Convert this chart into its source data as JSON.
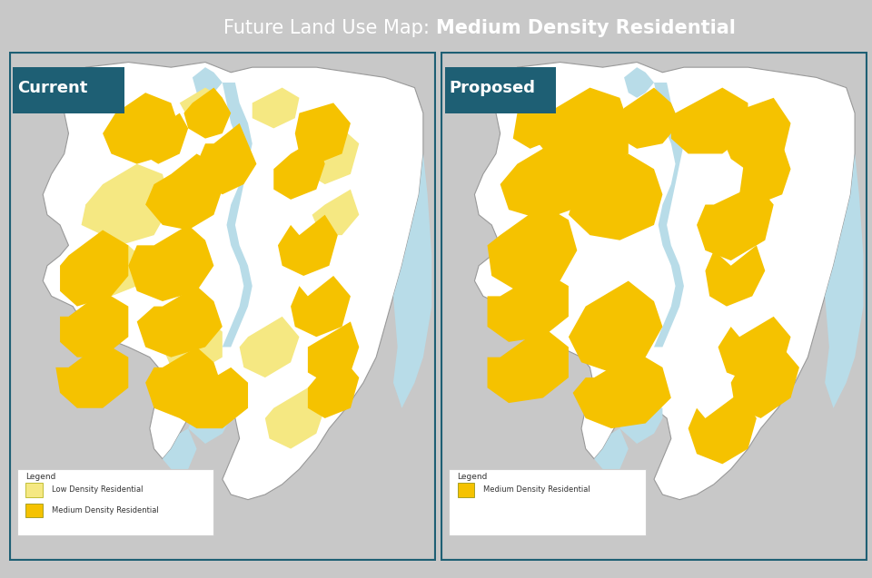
{
  "title_regular": "Future Land Use Map: ",
  "title_bold": "Medium Density Residential",
  "title_bg": "#1e5f74",
  "title_text_color": "#ffffff",
  "panel_bg": "#c8c8c8",
  "map_bg": "#ffffff",
  "water_color": "#b8dce8",
  "border_color": "#1e5f74",
  "border_width": 3,
  "left_label": "Current",
  "right_label": "Proposed",
  "label_bg": "#1e5f74",
  "label_text_color": "#ffffff",
  "low_density_color": "#f5e882",
  "medium_density_color": "#f5c200",
  "legend_left": [
    "Low Density Residential",
    "Medium Density Residential"
  ],
  "legend_right": [
    "Medium Density Residential"
  ],
  "fig_width": 9.6,
  "fig_height": 6.37
}
